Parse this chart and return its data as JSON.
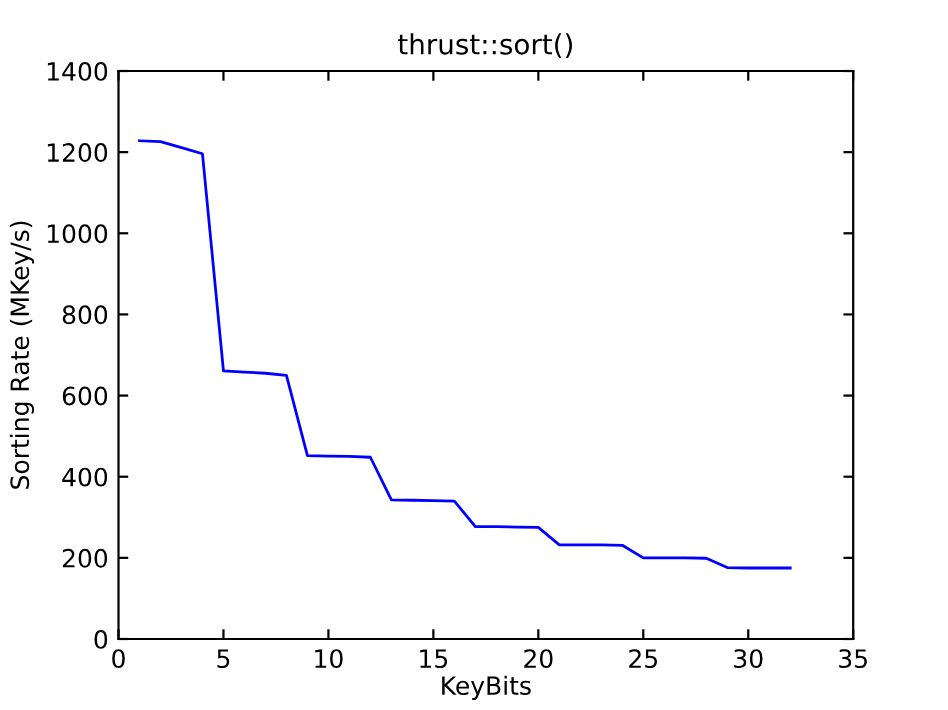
{
  "chart_data": {
    "type": "line",
    "title": "thrust::sort()",
    "xlabel": "KeyBits",
    "ylabel": "Sorting Rate (MKey/s)",
    "x": [
      1,
      2,
      3,
      4,
      5,
      6,
      7,
      8,
      9,
      10,
      11,
      12,
      13,
      14,
      15,
      16,
      17,
      18,
      19,
      20,
      21,
      22,
      23,
      24,
      25,
      26,
      27,
      28,
      29,
      30,
      31,
      32
    ],
    "series": [
      {
        "color": "#0000ff",
        "values": [
          1228,
          1226,
          1211,
          1196,
          661,
          658,
          655,
          650,
          452,
          451,
          450,
          448,
          343,
          342,
          341,
          340,
          277,
          277,
          276,
          275,
          232,
          232,
          232,
          231,
          200,
          200,
          200,
          199,
          176,
          175,
          175,
          175
        ]
      }
    ],
    "xlim": [
      0,
      35
    ],
    "ylim": [
      0,
      1400
    ],
    "xticks": [
      0,
      5,
      10,
      15,
      20,
      25,
      30,
      35
    ],
    "yticks": [
      0,
      200,
      400,
      600,
      800,
      1000,
      1200,
      1400
    ],
    "grid": false,
    "legend": false,
    "marker": "none",
    "line_style": "solid"
  }
}
